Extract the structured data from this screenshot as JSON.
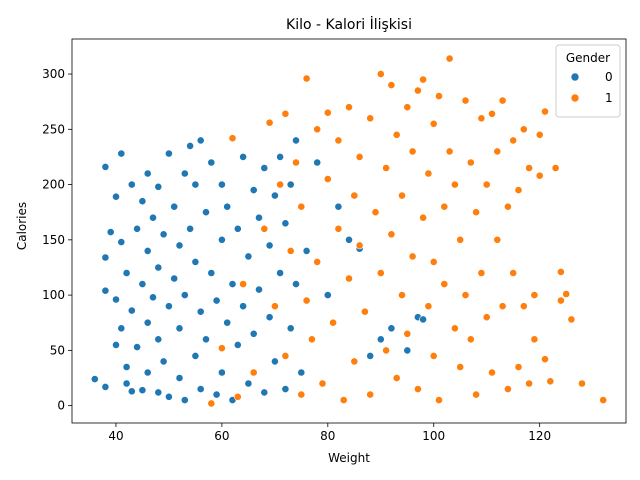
{
  "chart_data": {
    "type": "scatter",
    "title": "Kilo - Kalori İlişkisi",
    "xlabel": "Weight",
    "ylabel": "Calories",
    "xlim": [
      31.7,
      136.3
    ],
    "ylim": [
      -15.7,
      331.7
    ],
    "xticks": [
      40,
      60,
      80,
      100,
      120
    ],
    "yticks": [
      0,
      50,
      100,
      150,
      200,
      250,
      300
    ],
    "grid": false,
    "legend": {
      "title": "Gender",
      "placement": "top-right"
    },
    "colors": {
      "0": "#1f77b4",
      "1": "#ff7f0e"
    },
    "note_on_points": "Dense cloud; representative points estimated from the plot",
    "series": [
      {
        "name": "0",
        "color": "#1f77b4",
        "points": [
          [
            36,
            24
          ],
          [
            38,
            17
          ],
          [
            38,
            104
          ],
          [
            38,
            134
          ],
          [
            38,
            216
          ],
          [
            39,
            157
          ],
          [
            40,
            55
          ],
          [
            40,
            96
          ],
          [
            40,
            189
          ],
          [
            41,
            228
          ],
          [
            41,
            70
          ],
          [
            41,
            148
          ],
          [
            42,
            20
          ],
          [
            42,
            35
          ],
          [
            42,
            120
          ],
          [
            43,
            13
          ],
          [
            43,
            86
          ],
          [
            43,
            200
          ],
          [
            44,
            160
          ],
          [
            44,
            53
          ],
          [
            45,
            14
          ],
          [
            45,
            110
          ],
          [
            45,
            185
          ],
          [
            46,
            30
          ],
          [
            46,
            75
          ],
          [
            46,
            140
          ],
          [
            46,
            210
          ],
          [
            47,
            98
          ],
          [
            47,
            170
          ],
          [
            48,
            12
          ],
          [
            48,
            60
          ],
          [
            48,
            125
          ],
          [
            48,
            198
          ],
          [
            49,
            40
          ],
          [
            49,
            155
          ],
          [
            50,
            8
          ],
          [
            50,
            90
          ],
          [
            50,
            228
          ],
          [
            51,
            115
          ],
          [
            51,
            180
          ],
          [
            52,
            25
          ],
          [
            52,
            70
          ],
          [
            52,
            145
          ],
          [
            53,
            210
          ],
          [
            53,
            5
          ],
          [
            53,
            100
          ],
          [
            54,
            235
          ],
          [
            54,
            160
          ],
          [
            55,
            45
          ],
          [
            55,
            130
          ],
          [
            55,
            200
          ],
          [
            56,
            240
          ],
          [
            56,
            15
          ],
          [
            56,
            85
          ],
          [
            57,
            175
          ],
          [
            57,
            60
          ],
          [
            58,
            120
          ],
          [
            58,
            220
          ],
          [
            59,
            10
          ],
          [
            59,
            95
          ],
          [
            60,
            150
          ],
          [
            60,
            30
          ],
          [
            60,
            200
          ],
          [
            61,
            75
          ],
          [
            61,
            180
          ],
          [
            62,
            242
          ],
          [
            62,
            110
          ],
          [
            62,
            5
          ],
          [
            63,
            55
          ],
          [
            63,
            160
          ],
          [
            64,
            225
          ],
          [
            64,
            90
          ],
          [
            65,
            20
          ],
          [
            65,
            135
          ],
          [
            66,
            195
          ],
          [
            66,
            65
          ],
          [
            67,
            105
          ],
          [
            67,
            170
          ],
          [
            68,
            12
          ],
          [
            68,
            215
          ],
          [
            69,
            80
          ],
          [
            69,
            145
          ],
          [
            70,
            40
          ],
          [
            70,
            190
          ],
          [
            71,
            120
          ],
          [
            71,
            225
          ],
          [
            72,
            15
          ],
          [
            72,
            165
          ],
          [
            73,
            70
          ],
          [
            73,
            200
          ],
          [
            74,
            240
          ],
          [
            74,
            110
          ],
          [
            75,
            30
          ],
          [
            75,
            180
          ],
          [
            76,
            140
          ],
          [
            77,
            60
          ],
          [
            78,
            220
          ],
          [
            80,
            100
          ],
          [
            82,
            180
          ],
          [
            84,
            150
          ],
          [
            86,
            142
          ],
          [
            88,
            45
          ],
          [
            90,
            60
          ],
          [
            92,
            70
          ],
          [
            95,
            50
          ],
          [
            97,
            80
          ],
          [
            98,
            78
          ]
        ]
      },
      {
        "name": "1",
        "color": "#ff7f0e",
        "points": [
          [
            58,
            2
          ],
          [
            60,
            52
          ],
          [
            62,
            242
          ],
          [
            63,
            8
          ],
          [
            64,
            110
          ],
          [
            66,
            30
          ],
          [
            68,
            160
          ],
          [
            69,
            256
          ],
          [
            70,
            90
          ],
          [
            71,
            200
          ],
          [
            72,
            264
          ],
          [
            72,
            45
          ],
          [
            73,
            140
          ],
          [
            74,
            220
          ],
          [
            75,
            10
          ],
          [
            75,
            180
          ],
          [
            76,
            296
          ],
          [
            76,
            95
          ],
          [
            77,
            60
          ],
          [
            78,
            250
          ],
          [
            78,
            130
          ],
          [
            79,
            20
          ],
          [
            80,
            205
          ],
          [
            80,
            265
          ],
          [
            81,
            75
          ],
          [
            82,
            160
          ],
          [
            82,
            240
          ],
          [
            83,
            5
          ],
          [
            84,
            115
          ],
          [
            84,
            270
          ],
          [
            85,
            190
          ],
          [
            85,
            40
          ],
          [
            86,
            225
          ],
          [
            86,
            145
          ],
          [
            87,
            85
          ],
          [
            88,
            260
          ],
          [
            88,
            10
          ],
          [
            89,
            175
          ],
          [
            90,
            300
          ],
          [
            90,
            120
          ],
          [
            91,
            50
          ],
          [
            91,
            215
          ],
          [
            92,
            290
          ],
          [
            92,
            155
          ],
          [
            93,
            25
          ],
          [
            93,
            245
          ],
          [
            94,
            100
          ],
          [
            94,
            190
          ],
          [
            95,
            65
          ],
          [
            95,
            270
          ],
          [
            96,
            135
          ],
          [
            96,
            230
          ],
          [
            97,
            15
          ],
          [
            97,
            285
          ],
          [
            98,
            170
          ],
          [
            98,
            295
          ],
          [
            99,
            90
          ],
          [
            99,
            210
          ],
          [
            100,
            45
          ],
          [
            100,
            255
          ],
          [
            100,
            130
          ],
          [
            101,
            280
          ],
          [
            101,
            5
          ],
          [
            102,
            180
          ],
          [
            102,
            110
          ],
          [
            103,
            314
          ],
          [
            103,
            230
          ],
          [
            104,
            70
          ],
          [
            104,
            200
          ],
          [
            105,
            150
          ],
          [
            105,
            35
          ],
          [
            106,
            276
          ],
          [
            106,
            100
          ],
          [
            107,
            220
          ],
          [
            107,
            60
          ],
          [
            108,
            175
          ],
          [
            108,
            10
          ],
          [
            109,
            260
          ],
          [
            109,
            120
          ],
          [
            110,
            80
          ],
          [
            110,
            200
          ],
          [
            111,
            264
          ],
          [
            111,
            30
          ],
          [
            112,
            150
          ],
          [
            112,
            230
          ],
          [
            113,
            276
          ],
          [
            113,
            90
          ],
          [
            114,
            15
          ],
          [
            114,
            180
          ],
          [
            115,
            240
          ],
          [
            115,
            120
          ],
          [
            116,
            35
          ],
          [
            116,
            195
          ],
          [
            117,
            250
          ],
          [
            117,
            90
          ],
          [
            118,
            20
          ],
          [
            118,
            215
          ],
          [
            119,
            100
          ],
          [
            119,
            60
          ],
          [
            120,
            245
          ],
          [
            120,
            208
          ],
          [
            121,
            266
          ],
          [
            121,
            42
          ],
          [
            122,
            22
          ],
          [
            123,
            215
          ],
          [
            124,
            121
          ],
          [
            124,
            95
          ],
          [
            125,
            101
          ],
          [
            126,
            78
          ],
          [
            128,
            20
          ],
          [
            132,
            5
          ]
        ]
      }
    ]
  }
}
